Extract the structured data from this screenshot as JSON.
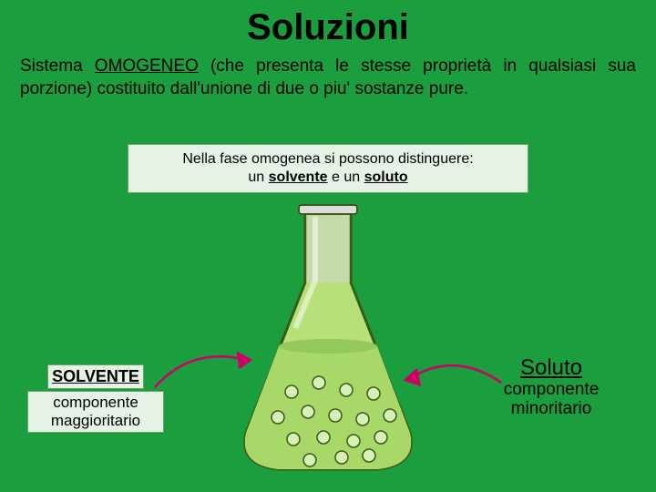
{
  "title": "Soluzioni",
  "subtitle_pre": "Sistema ",
  "subtitle_key": "OMOGENEO",
  "subtitle_post": " (che presenta le stesse proprietà in qualsiasi sua porzione) costituito dall'unione di due o piu' sostanze pure.",
  "info_line1": "Nella fase omogenea si possono distinguere:",
  "info_un": "un ",
  "info_kw1": "solvente",
  "info_mid": " e un ",
  "info_kw2": "soluto",
  "solvente": {
    "label": "SOLVENTE",
    "desc": "componente maggioritario"
  },
  "soluto": {
    "label": "Soluto",
    "desc": "componente minoritario"
  },
  "colors": {
    "bg": "#1a9e3e",
    "flask_body": "#b7e07a",
    "flask_outline": "#3a5a18",
    "flask_neck": "#dcdcdc",
    "liquid": "#a8d968",
    "bubble_stroke": "#3a5a18",
    "arrow": "#cc0066"
  },
  "flask": {
    "bubbles": [
      [
        70,
        210,
        7
      ],
      [
        100,
        200,
        7
      ],
      [
        130,
        208,
        7
      ],
      [
        160,
        212,
        7
      ],
      [
        55,
        238,
        7
      ],
      [
        88,
        232,
        7
      ],
      [
        118,
        236,
        7
      ],
      [
        148,
        240,
        7
      ],
      [
        178,
        236,
        7
      ],
      [
        72,
        262,
        7
      ],
      [
        105,
        260,
        7
      ],
      [
        138,
        264,
        7
      ],
      [
        168,
        260,
        7
      ],
      [
        90,
        285,
        7
      ],
      [
        125,
        282,
        7
      ],
      [
        155,
        280,
        7
      ]
    ]
  }
}
